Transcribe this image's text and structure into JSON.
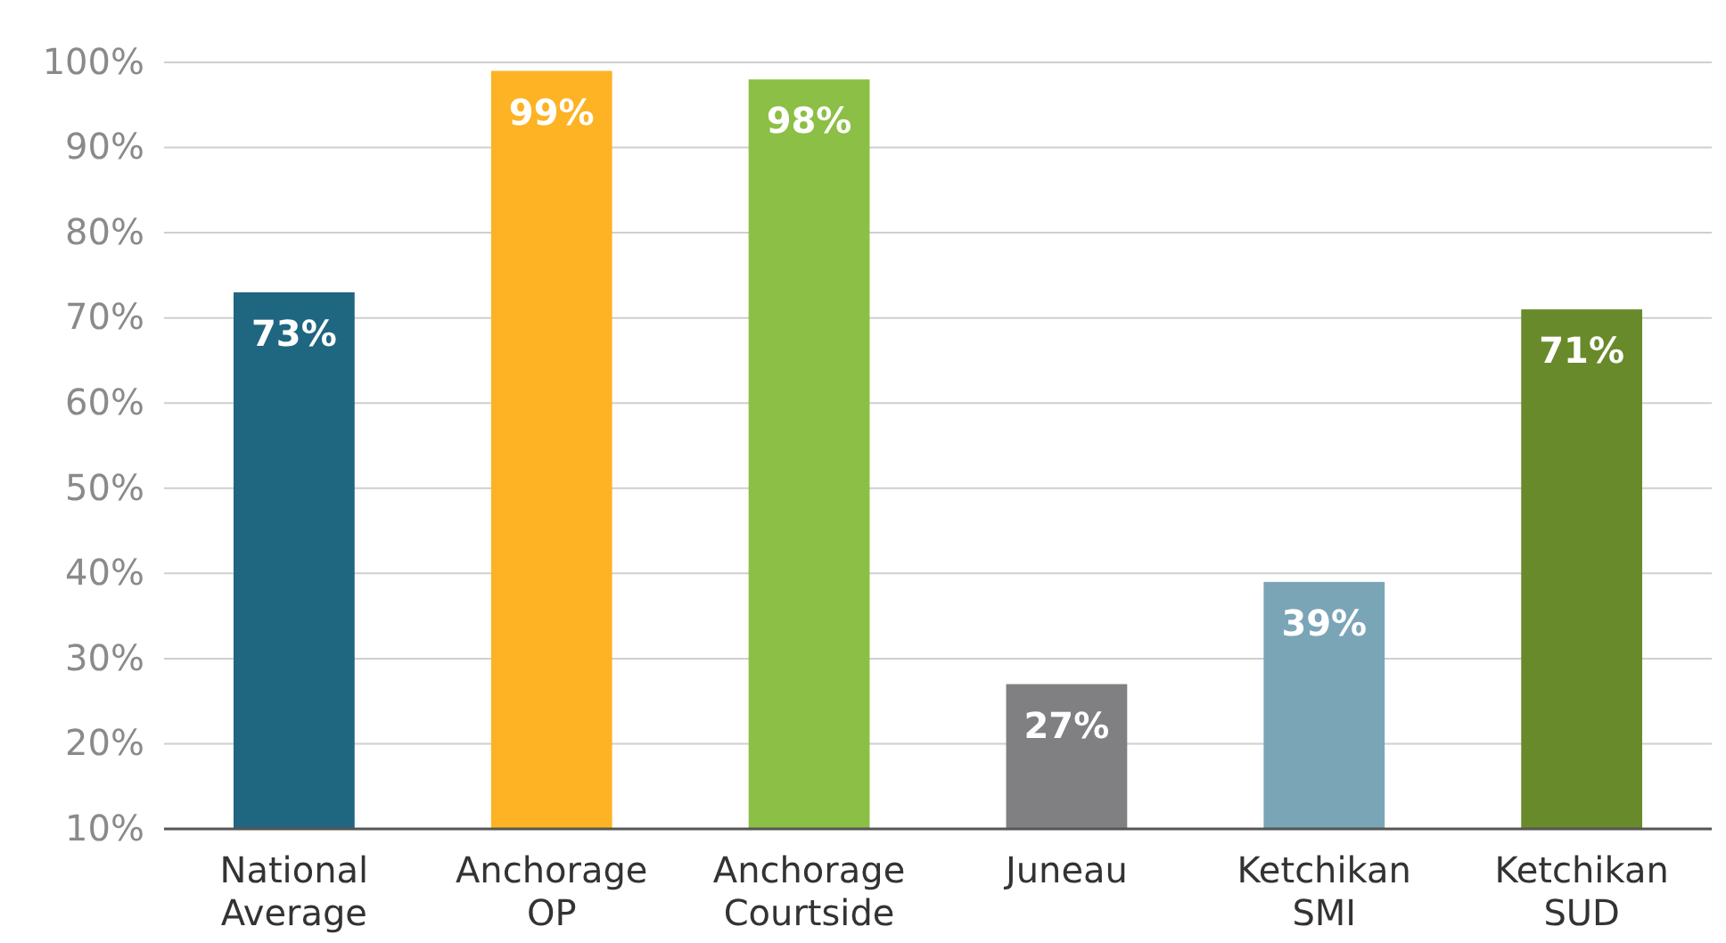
{
  "chart_data": {
    "type": "bar",
    "categories": [
      "National Average",
      "Anchorage OP",
      "Anchorage Courtside",
      "Juneau",
      "Ketchikan SMI",
      "Ketchikan SUD"
    ],
    "values": [
      73,
      99,
      98,
      27,
      39,
      71
    ],
    "colors": [
      "#1f6680",
      "#fdb323",
      "#8cbf45",
      "#808083",
      "#7aa5b7",
      "#688a2a"
    ],
    "ylim": [
      10,
      100
    ],
    "yticks": [
      {
        "value": 10,
        "label": "10%"
      },
      {
        "value": 20,
        "label": "20%"
      },
      {
        "value": 30,
        "label": "30%"
      },
      {
        "value": 40,
        "label": "40%"
      },
      {
        "value": 50,
        "label": "50%"
      },
      {
        "value": 60,
        "label": "60%"
      },
      {
        "value": 70,
        "label": "70%"
      },
      {
        "value": 80,
        "label": "80%"
      },
      {
        "value": 90,
        "label": "90%"
      },
      {
        "value": 100,
        "label": "100%"
      }
    ],
    "value_labels": [
      "73%",
      "99%",
      "98%",
      "27%",
      "39%",
      "71%"
    ],
    "grid": "y"
  }
}
